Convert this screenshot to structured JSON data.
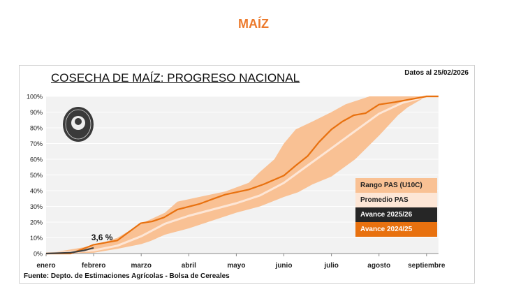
{
  "page_title": "MAÍZ",
  "chart_data": {
    "type": "line",
    "title": "COSECHA DE MAÍZ: PROGRESO NACIONAL",
    "date_note": "Datos al 25/02/2026",
    "source": "Fuente: Depto. de Estimaciones Agrícolas - Bolsa de Cereales",
    "x_categories": [
      "enero",
      "febrero",
      "marzo",
      "abril",
      "mayo",
      "junio",
      "julio",
      "agosto",
      "septiembre"
    ],
    "y_ticks": [
      "0%",
      "10%",
      "20%",
      "30%",
      "40%",
      "50%",
      "60%",
      "70%",
      "80%",
      "90%",
      "100%"
    ],
    "ylim": [
      0,
      100
    ],
    "grid": true,
    "legend_position": "right",
    "annotation": "3,6 %",
    "colors": {
      "range": "#f9c194",
      "average": "#fde6d6",
      "current": "#404040",
      "previous": "#e8710f",
      "background": "#f2f2f2"
    },
    "range": {
      "name": "Rango PAS (U10C)",
      "upper": [
        [
          0,
          0
        ],
        [
          1,
          5
        ],
        [
          1.5,
          10
        ],
        [
          2,
          19
        ],
        [
          2.5,
          26
        ],
        [
          2.76,
          33
        ],
        [
          3.22,
          36
        ],
        [
          3.77,
          39.5
        ],
        [
          4.26,
          45
        ],
        [
          4.5,
          52
        ],
        [
          4.8,
          60
        ],
        [
          5,
          70
        ],
        [
          5.25,
          79
        ],
        [
          5.6,
          84
        ],
        [
          6,
          90
        ],
        [
          6.3,
          95
        ],
        [
          6.6,
          98
        ],
        [
          6.8,
          100
        ],
        [
          8.25,
          100
        ]
      ],
      "lower": [
        [
          0,
          0
        ],
        [
          1,
          0.5
        ],
        [
          1.5,
          3
        ],
        [
          2,
          6
        ],
        [
          2.2,
          8
        ],
        [
          2.5,
          12
        ],
        [
          3,
          16
        ],
        [
          3.5,
          21
        ],
        [
          4,
          26
        ],
        [
          4.5,
          30
        ],
        [
          5,
          36
        ],
        [
          5.3,
          39
        ],
        [
          5.6,
          44
        ],
        [
          6,
          49
        ],
        [
          6.5,
          60
        ],
        [
          7,
          75
        ],
        [
          7.4,
          88
        ],
        [
          7.6,
          93
        ],
        [
          8,
          100
        ],
        [
          8.25,
          100
        ]
      ]
    },
    "series": [
      {
        "name": "Promedio PAS",
        "points": [
          [
            0,
            0
          ],
          [
            1,
            2
          ],
          [
            1.5,
            5
          ],
          [
            2,
            11
          ],
          [
            2.5,
            19
          ],
          [
            3,
            24
          ],
          [
            3.5,
            28
          ],
          [
            4,
            32
          ],
          [
            4.5,
            37
          ],
          [
            5,
            45
          ],
          [
            5.5,
            56
          ],
          [
            6,
            67
          ],
          [
            6.5,
            78
          ],
          [
            7,
            89
          ],
          [
            7.5,
            96
          ],
          [
            8,
            100
          ],
          [
            8.25,
            100
          ]
        ]
      },
      {
        "name": "Avance 2025/26",
        "points": [
          [
            0,
            0
          ],
          [
            0.5,
            0.5
          ],
          [
            0.8,
            2
          ],
          [
            1,
            3.6
          ]
        ]
      },
      {
        "name": "Avance 2024/25",
        "points": [
          [
            0,
            0
          ],
          [
            0.52,
            0
          ],
          [
            1,
            5.6
          ],
          [
            1.5,
            8.3
          ],
          [
            1.99,
            19.3
          ],
          [
            2.23,
            20.4
          ],
          [
            2.48,
            23
          ],
          [
            2.76,
            28
          ],
          [
            3.22,
            31.5
          ],
          [
            3.53,
            35
          ],
          [
            3.77,
            37.5
          ],
          [
            4.26,
            40.7
          ],
          [
            4.57,
            44
          ],
          [
            5,
            49.6
          ],
          [
            5.25,
            56
          ],
          [
            5.5,
            62
          ],
          [
            5.74,
            71
          ],
          [
            6,
            79
          ],
          [
            6.23,
            84
          ],
          [
            6.47,
            88
          ],
          [
            6.72,
            89.3
          ],
          [
            7,
            94.8
          ],
          [
            7.33,
            96.3
          ],
          [
            8,
            100
          ],
          [
            8.25,
            100
          ]
        ]
      }
    ],
    "logo_text": "Bolsa de Cereales"
  }
}
